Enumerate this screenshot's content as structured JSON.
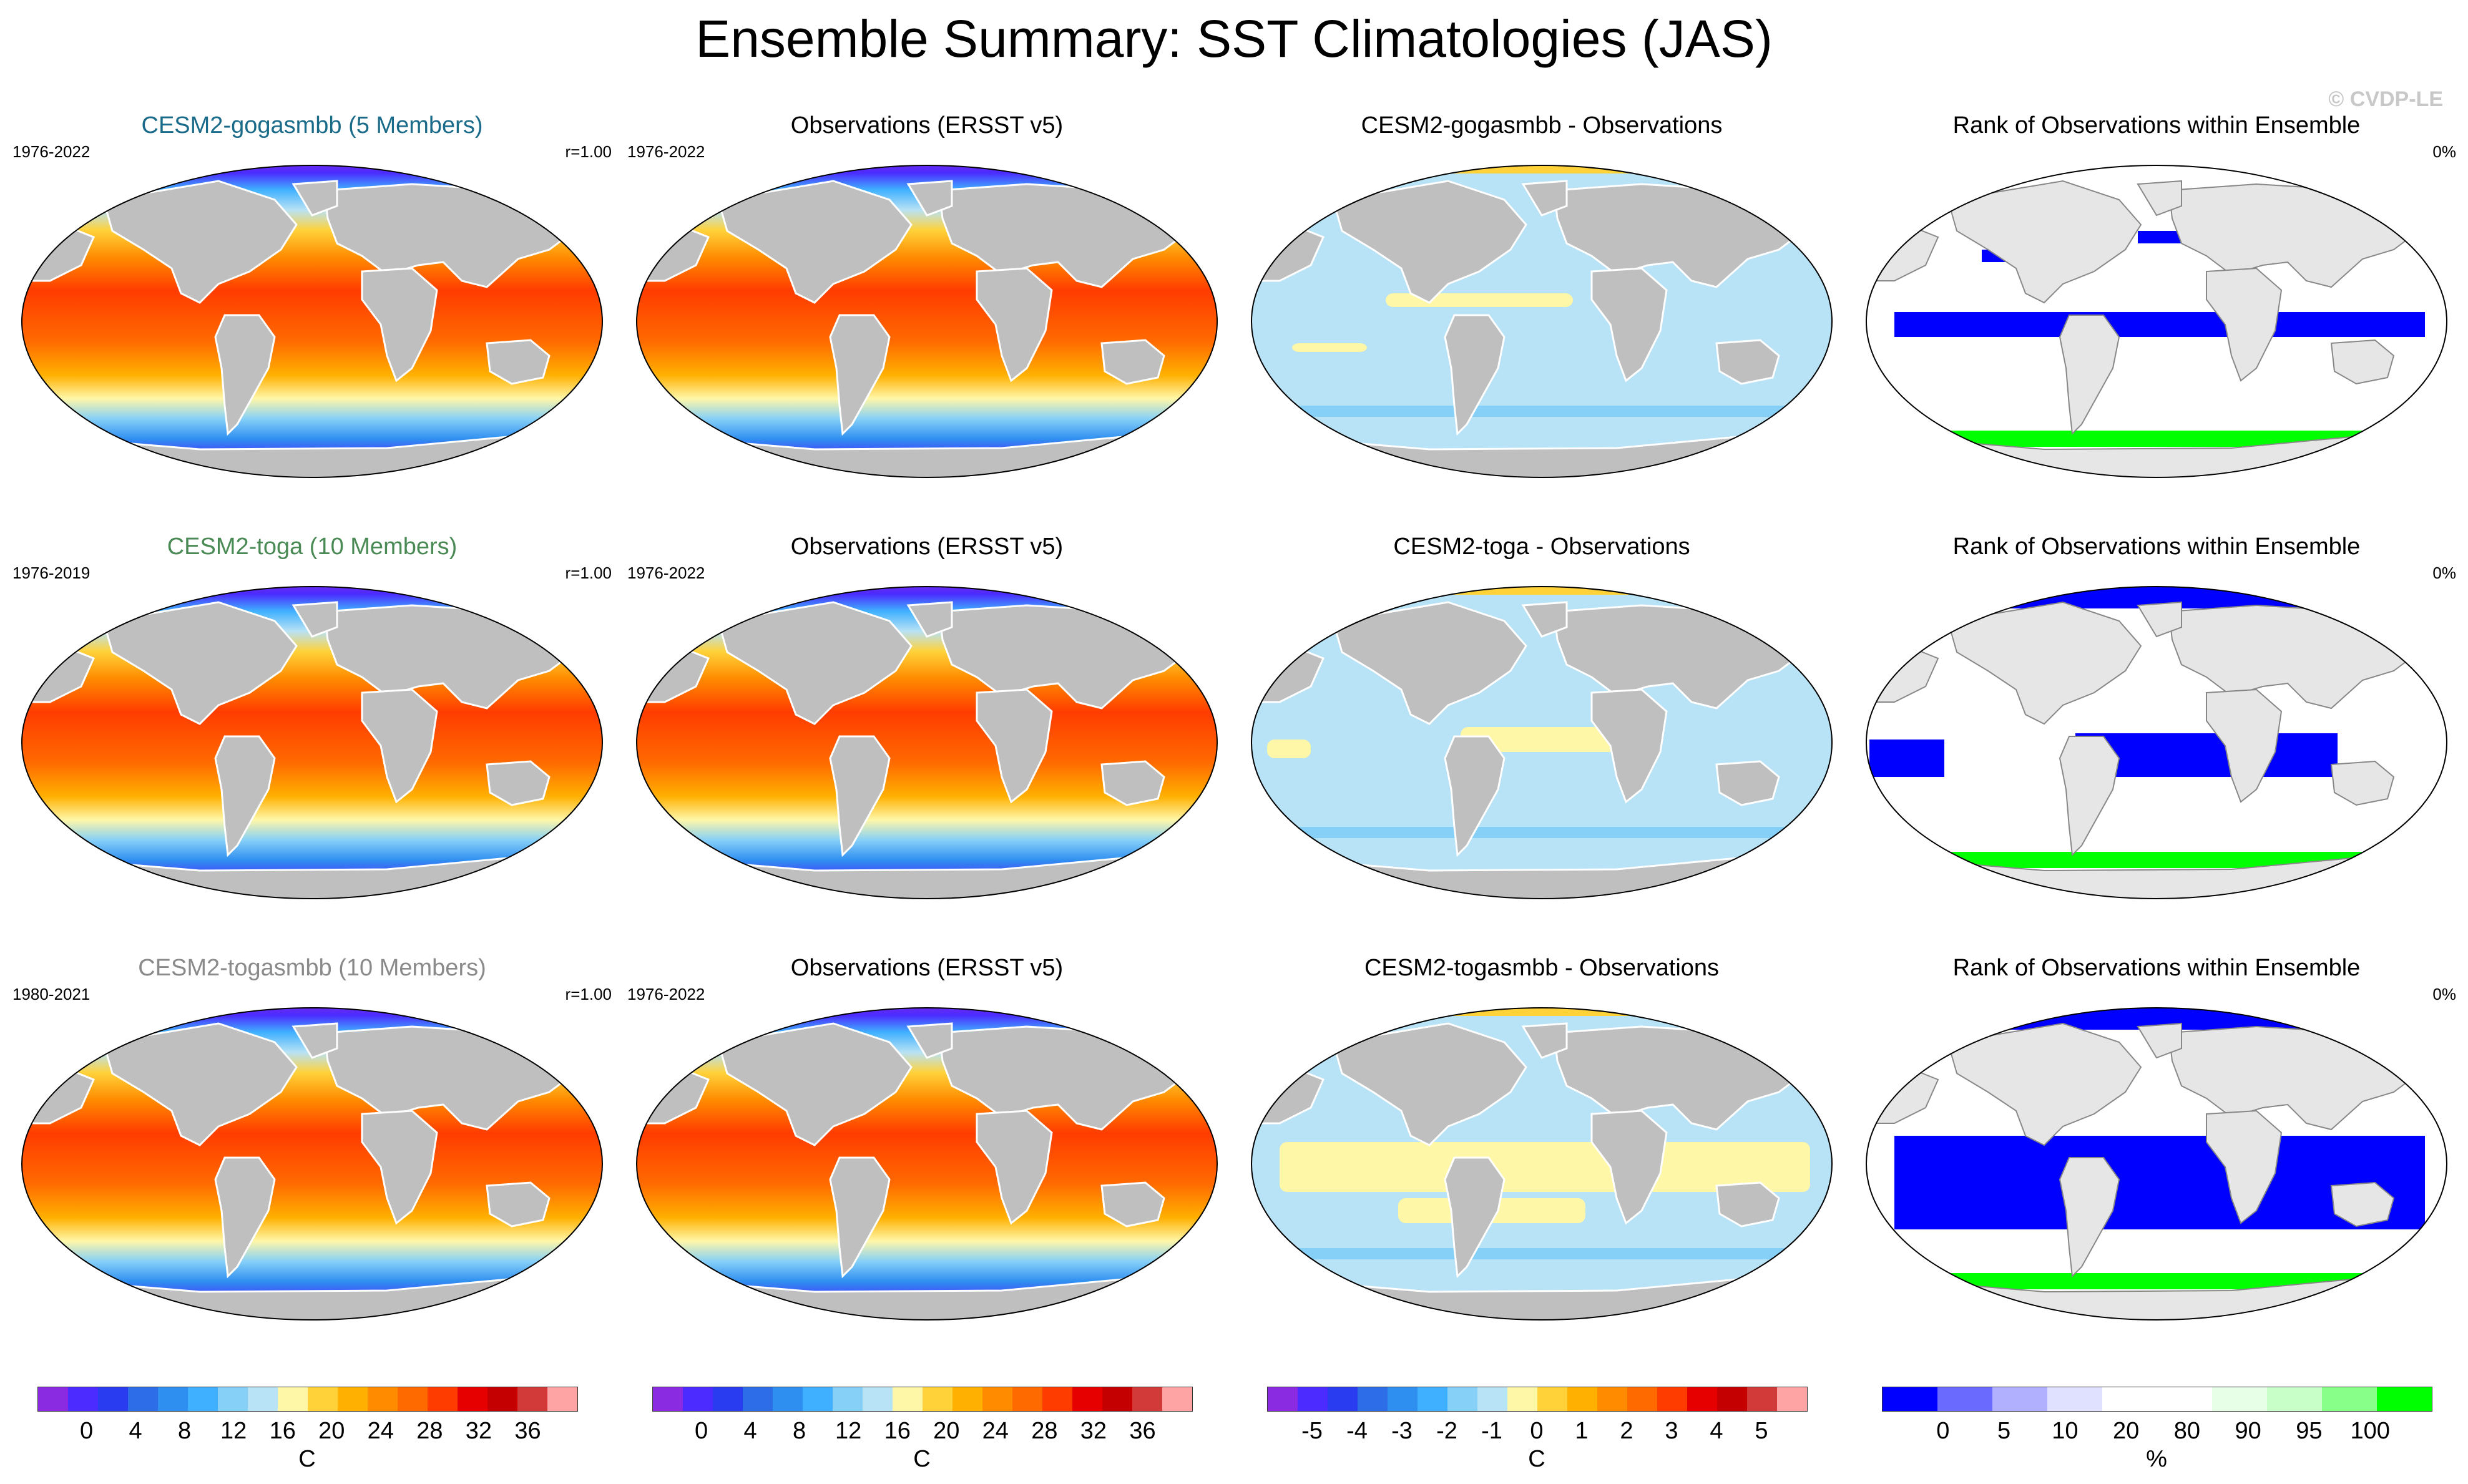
{
  "title": "Ensemble Summary: SST Climatologies (JAS)",
  "watermark": "© CVDP-LE",
  "colors": {
    "land": "#bfbfbf",
    "land_light": "#e6e6e6",
    "sst_scale": [
      "#8a2be2",
      "#4b2bff",
      "#2a3cf0",
      "#2d6ee8",
      "#2f8ff0",
      "#3fb0ff",
      "#86d0f8",
      "#b8e2f5",
      "#fff7a8",
      "#ffd23a",
      "#ffb000",
      "#ff8c00",
      "#ff6a00",
      "#ff3c00",
      "#e60000",
      "#c40000",
      "#d23a3a",
      "#ffa4a4"
    ],
    "diff_scale": [
      "#8a2be2",
      "#4b2bff",
      "#2a3cf0",
      "#2d6ee8",
      "#2f8ff0",
      "#3fb0ff",
      "#86d0f8",
      "#b8e2f5",
      "#fff7a8",
      "#ffd23a",
      "#ffb000",
      "#ff8c00",
      "#ff6a00",
      "#ff3c00",
      "#e60000",
      "#c40000",
      "#d23a3a",
      "#ffa4a4"
    ],
    "rank_scale": [
      "#0000ff",
      "#6a6aff",
      "#b0b0ff",
      "#e0e0ff",
      "#ffffff",
      "#ffffff",
      "#e6ffe6",
      "#c8ffc8",
      "#88ff88",
      "#00ff00"
    ]
  },
  "rows": [
    {
      "model_title": "CESM2-gogasmbb (5 Members)",
      "model_color": "#1a6b8a",
      "model_years": "1976-2022",
      "pattern_corr": "r=1.00",
      "obs_title": "Observations (ERSST v5)",
      "obs_years": "1976-2022",
      "diff_title": "CESM2-gogasmbb - Observations",
      "rank_title": "Rank of Observations within Ensemble",
      "rank_pct": "0%"
    },
    {
      "model_title": "CESM2-toga (10 Members)",
      "model_color": "#4a8a55",
      "model_years": "1976-2019",
      "pattern_corr": "r=1.00",
      "obs_title": "Observations (ERSST v5)",
      "obs_years": "1976-2022",
      "diff_title": "CESM2-toga - Observations",
      "rank_title": "Rank of Observations within Ensemble",
      "rank_pct": "0%"
    },
    {
      "model_title": "CESM2-togasmbb (10 Members)",
      "model_color": "#8a8a8a",
      "model_years": "1980-2021",
      "pattern_corr": "r=1.00",
      "obs_title": "Observations (ERSST v5)",
      "obs_years": "1976-2022",
      "diff_title": "CESM2-togasmbb - Observations",
      "rank_title": "Rank of Observations within Ensemble",
      "rank_pct": "0%"
    }
  ],
  "colorbars": [
    {
      "ticks": [
        "0",
        "4",
        "8",
        "12",
        "16",
        "20",
        "24",
        "28",
        "32",
        "36"
      ],
      "unit": "C"
    },
    {
      "ticks": [
        "0",
        "4",
        "8",
        "12",
        "16",
        "20",
        "24",
        "28",
        "32",
        "36"
      ],
      "unit": "C"
    },
    {
      "ticks": [
        "-5",
        "-4",
        "-3",
        "-2",
        "-1",
        "0",
        "1",
        "2",
        "3",
        "4",
        "5"
      ],
      "unit": "C"
    },
    {
      "ticks": [
        "0",
        "5",
        "10",
        "20",
        "80",
        "90",
        "95",
        "100"
      ],
      "unit": "%"
    }
  ]
}
